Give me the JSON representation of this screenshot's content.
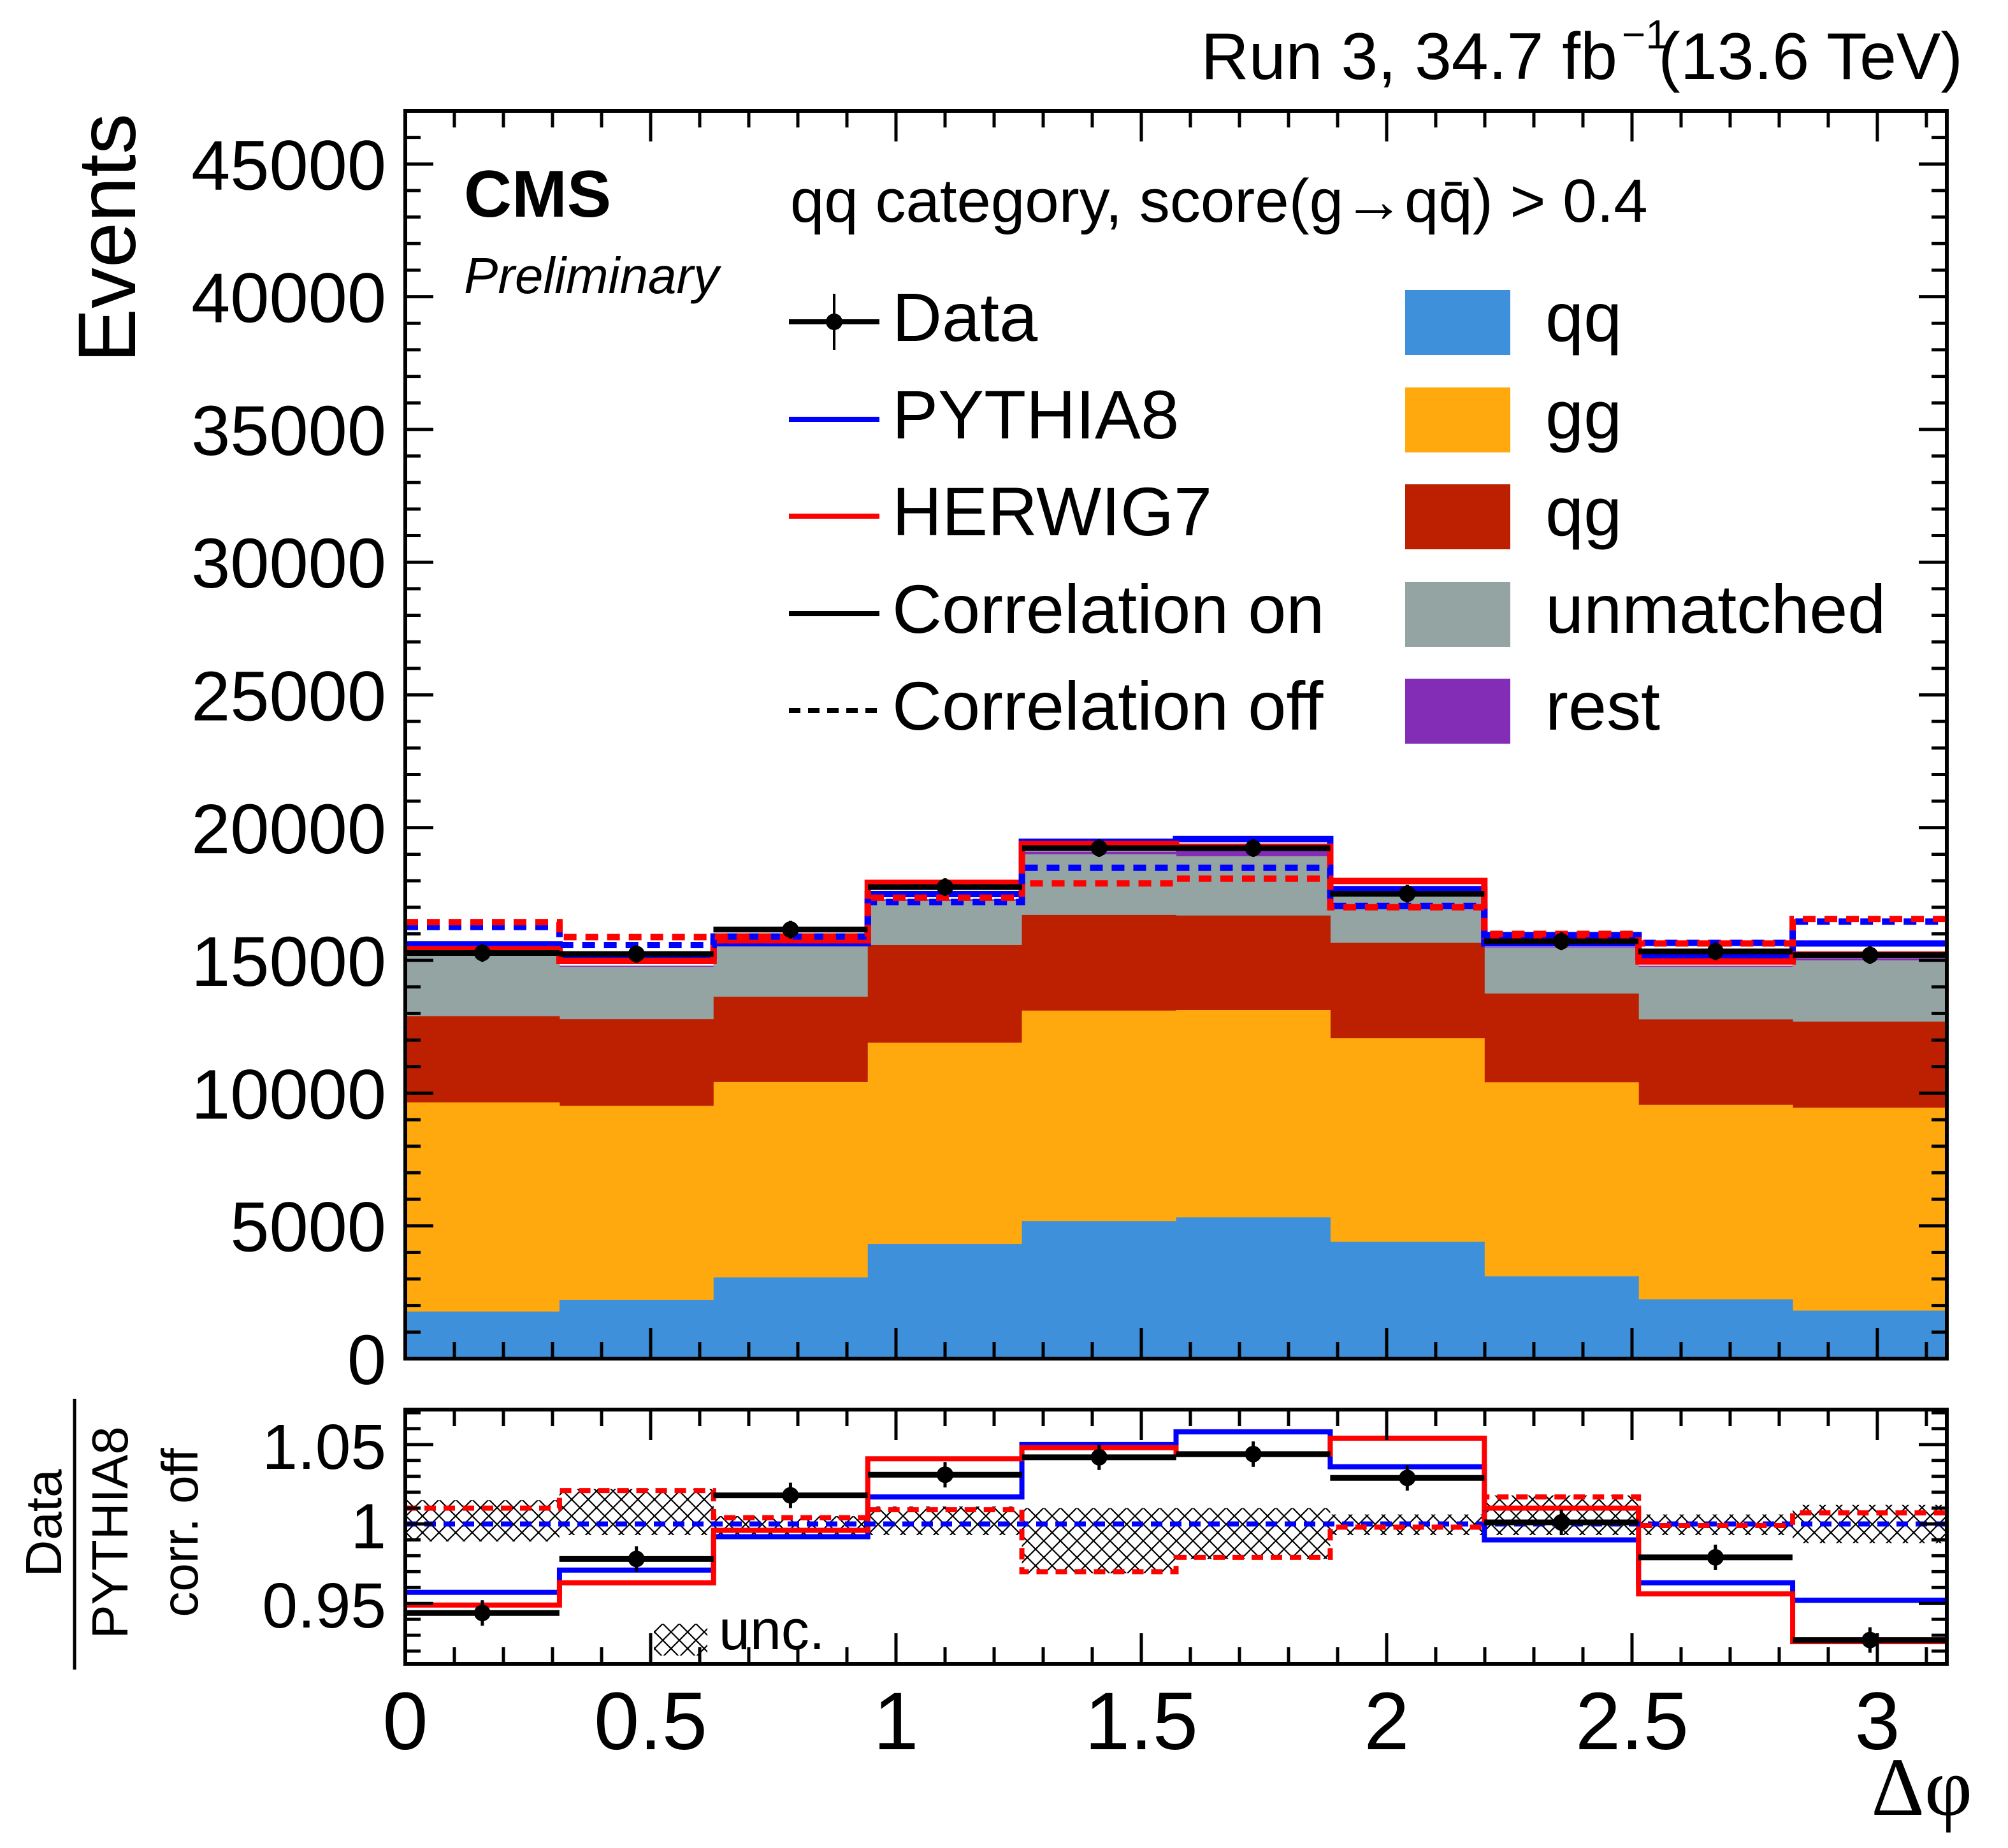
{
  "header": {
    "run_label": "Run 3, 34.7 fb",
    "lumi_exponent": "−1",
    "energy": "(13.6 TeV)"
  },
  "experiment": {
    "name": "CMS",
    "status": "Preliminary"
  },
  "selection_text": "qq category, score(g→qq̄) > 0.4",
  "chart_data": [
    {
      "type": "bar",
      "subtype": "stacked-histogram-with-step-lines",
      "panel": "main",
      "title": "",
      "xlabel": "Δφ",
      "ylabel": "Events",
      "xlim": [
        0,
        3.1416
      ],
      "ylim": [
        0,
        47000
      ],
      "yticks": [
        0,
        5000,
        10000,
        15000,
        20000,
        25000,
        30000,
        35000,
        40000,
        45000
      ],
      "bin_edges": [
        0,
        0.3142,
        0.6283,
        0.9425,
        1.2566,
        1.5708,
        1.885,
        2.1991,
        2.5133,
        2.8274,
        3.1416
      ],
      "stack_cumulative_tops": true,
      "stack": [
        {
          "name": "qq",
          "color": "#3f90da",
          "values": [
            1770,
            2210,
            3060,
            4320,
            5180,
            5320,
            4400,
            3100,
            2230,
            1810
          ]
        },
        {
          "name": "gg",
          "color": "#ffa90e",
          "values": [
            9650,
            9520,
            10420,
            11900,
            13110,
            13130,
            12070,
            10410,
            9560,
            9450
          ]
        },
        {
          "name": "qg",
          "color": "#bd1f01",
          "values": [
            12900,
            12790,
            13630,
            15580,
            16710,
            16690,
            15660,
            13750,
            12780,
            12690
          ]
        },
        {
          "name": "unmatched",
          "color": "#94a4a2",
          "values": [
            15240,
            14760,
            15520,
            17240,
            19000,
            18930,
            17430,
            15470,
            14760,
            15000
          ]
        },
        {
          "name": "rest",
          "color": "#832db6",
          "values": [
            15260,
            14800,
            15580,
            17300,
            19100,
            19160,
            17810,
            15500,
            14800,
            15080
          ]
        }
      ],
      "lines": [
        {
          "name": "PYTHIA8, correlation on",
          "color": "#0000ff",
          "style": "solid",
          "values": [
            15600,
            15160,
            15660,
            17500,
            19470,
            19570,
            17670,
            15640,
            15120,
            15640
          ]
        },
        {
          "name": "HERWIG7, correlation on",
          "color": "#ff0000",
          "style": "solid",
          "values": [
            15420,
            14980,
            15760,
            17920,
            19380,
            19280,
            17990,
            15920,
            14960,
            15220
          ]
        },
        {
          "name": "PYTHIA8, correlation off",
          "color": "#0000ff",
          "style": "dashed",
          "values": [
            16260,
            15580,
            15900,
            17200,
            18490,
            18490,
            17050,
            15950,
            15660,
            16460
          ]
        },
        {
          "name": "HERWIG7, correlation off",
          "color": "#ff0000",
          "style": "dashed",
          "values": [
            16440,
            15880,
            15900,
            17360,
            17900,
            18080,
            17000,
            16000,
            15640,
            16560
          ]
        }
      ],
      "data_points": {
        "name": "Data",
        "x": [
          0.157,
          0.471,
          0.785,
          1.1,
          1.414,
          1.728,
          2.042,
          2.356,
          2.67,
          2.985
        ],
        "y": [
          15280,
          15240,
          16160,
          17760,
          19230,
          19230,
          17510,
          15720,
          15340,
          15200
        ]
      },
      "legend": {
        "placement": "top-right",
        "entries": [
          {
            "label": "Data",
            "kind": "marker"
          },
          {
            "label": "PYTHIA8",
            "kind": "line",
            "color": "#0000ff"
          },
          {
            "label": "HERWIG7",
            "kind": "line",
            "color": "#ff0000"
          },
          {
            "label": "Correlation on",
            "kind": "line",
            "color": "#000000"
          },
          {
            "label": "Correlation off",
            "kind": "dashed",
            "color": "#000000"
          },
          {
            "label": "qq",
            "kind": "fill",
            "color": "#3f90da"
          },
          {
            "label": "gg",
            "kind": "fill",
            "color": "#ffa90e"
          },
          {
            "label": "qg",
            "kind": "fill",
            "color": "#bd1f01"
          },
          {
            "label": "unmatched",
            "kind": "fill",
            "color": "#94a4a2"
          },
          {
            "label": "rest",
            "kind": "fill",
            "color": "#832db6"
          }
        ]
      }
    },
    {
      "type": "line",
      "subtype": "ratio-step",
      "panel": "ratio",
      "ylabel_numerator": "Data",
      "ylabel_denominator": "PYTHIA8",
      "ylabel_sub": "corr. off",
      "xlabel": "Δφ",
      "xlim": [
        0,
        3.1416
      ],
      "ylim": [
        0.912,
        1.072
      ],
      "yticks": [
        0.95,
        1,
        1.05
      ],
      "ytick_labels": [
        "0.95",
        "1",
        "1.05"
      ],
      "xticks": [
        0,
        0.5,
        1,
        1.5,
        2,
        2.5,
        3
      ],
      "xtick_labels": [
        "0",
        "0.5",
        "1",
        "1.5",
        "2",
        "2.5",
        "3"
      ],
      "bin_edges": [
        0,
        0.3142,
        0.6283,
        0.9425,
        1.2566,
        1.5708,
        1.885,
        2.1991,
        2.5133,
        2.8274,
        3.1416
      ],
      "uncertainty_band": {
        "label": "unc.",
        "up": [
          1.015,
          1.022,
          1.005,
          1.011,
          1.01,
          1.01,
          1.006,
          1.018,
          1.006,
          1.012
        ],
        "down": [
          0.989,
          0.993,
          0.993,
          0.993,
          0.969,
          0.978,
          0.993,
          0.993,
          0.993,
          0.988
        ]
      },
      "lines": [
        {
          "name": "PYTHIA8 corr. on / PYTHIA8 corr. off",
          "color": "#0000ff",
          "style": "solid",
          "values": [
            0.957,
            0.971,
            0.992,
            1.017,
            1.05,
            1.058,
            1.036,
            0.99,
            0.963,
            0.952
          ]
        },
        {
          "name": "HERWIG7 corr. on / PYTHIA8 corr. off",
          "color": "#ff0000",
          "style": "solid",
          "values": [
            0.949,
            0.963,
            0.996,
            1.041,
            1.048,
            1.044,
            1.054,
            1.01,
            0.956,
            0.926
          ]
        },
        {
          "name": "PYTHIA8 corr. off / PYTHIA8 corr. off",
          "color": "#0000ff",
          "style": "dashed",
          "values": [
            1,
            1,
            1,
            1,
            1,
            1,
            1,
            1,
            1,
            1
          ]
        },
        {
          "name": "HERWIG7 corr. off / PYTHIA8 corr. off",
          "color": "#ff0000",
          "style": "dashed",
          "values": [
            1.01,
            1.021,
            1.004,
            1.009,
            0.97,
            0.979,
            0.998,
            1.017,
            0.999,
            1.007
          ]
        }
      ],
      "data_points": {
        "name": "Data / PYTHIA8 corr. off",
        "x": [
          0.157,
          0.471,
          0.785,
          1.1,
          1.414,
          1.728,
          2.042,
          2.356,
          2.67,
          2.985
        ],
        "y": [
          0.944,
          0.978,
          1.018,
          1.031,
          1.042,
          1.044,
          1.029,
          1.001,
          0.979,
          0.927
        ]
      }
    }
  ]
}
